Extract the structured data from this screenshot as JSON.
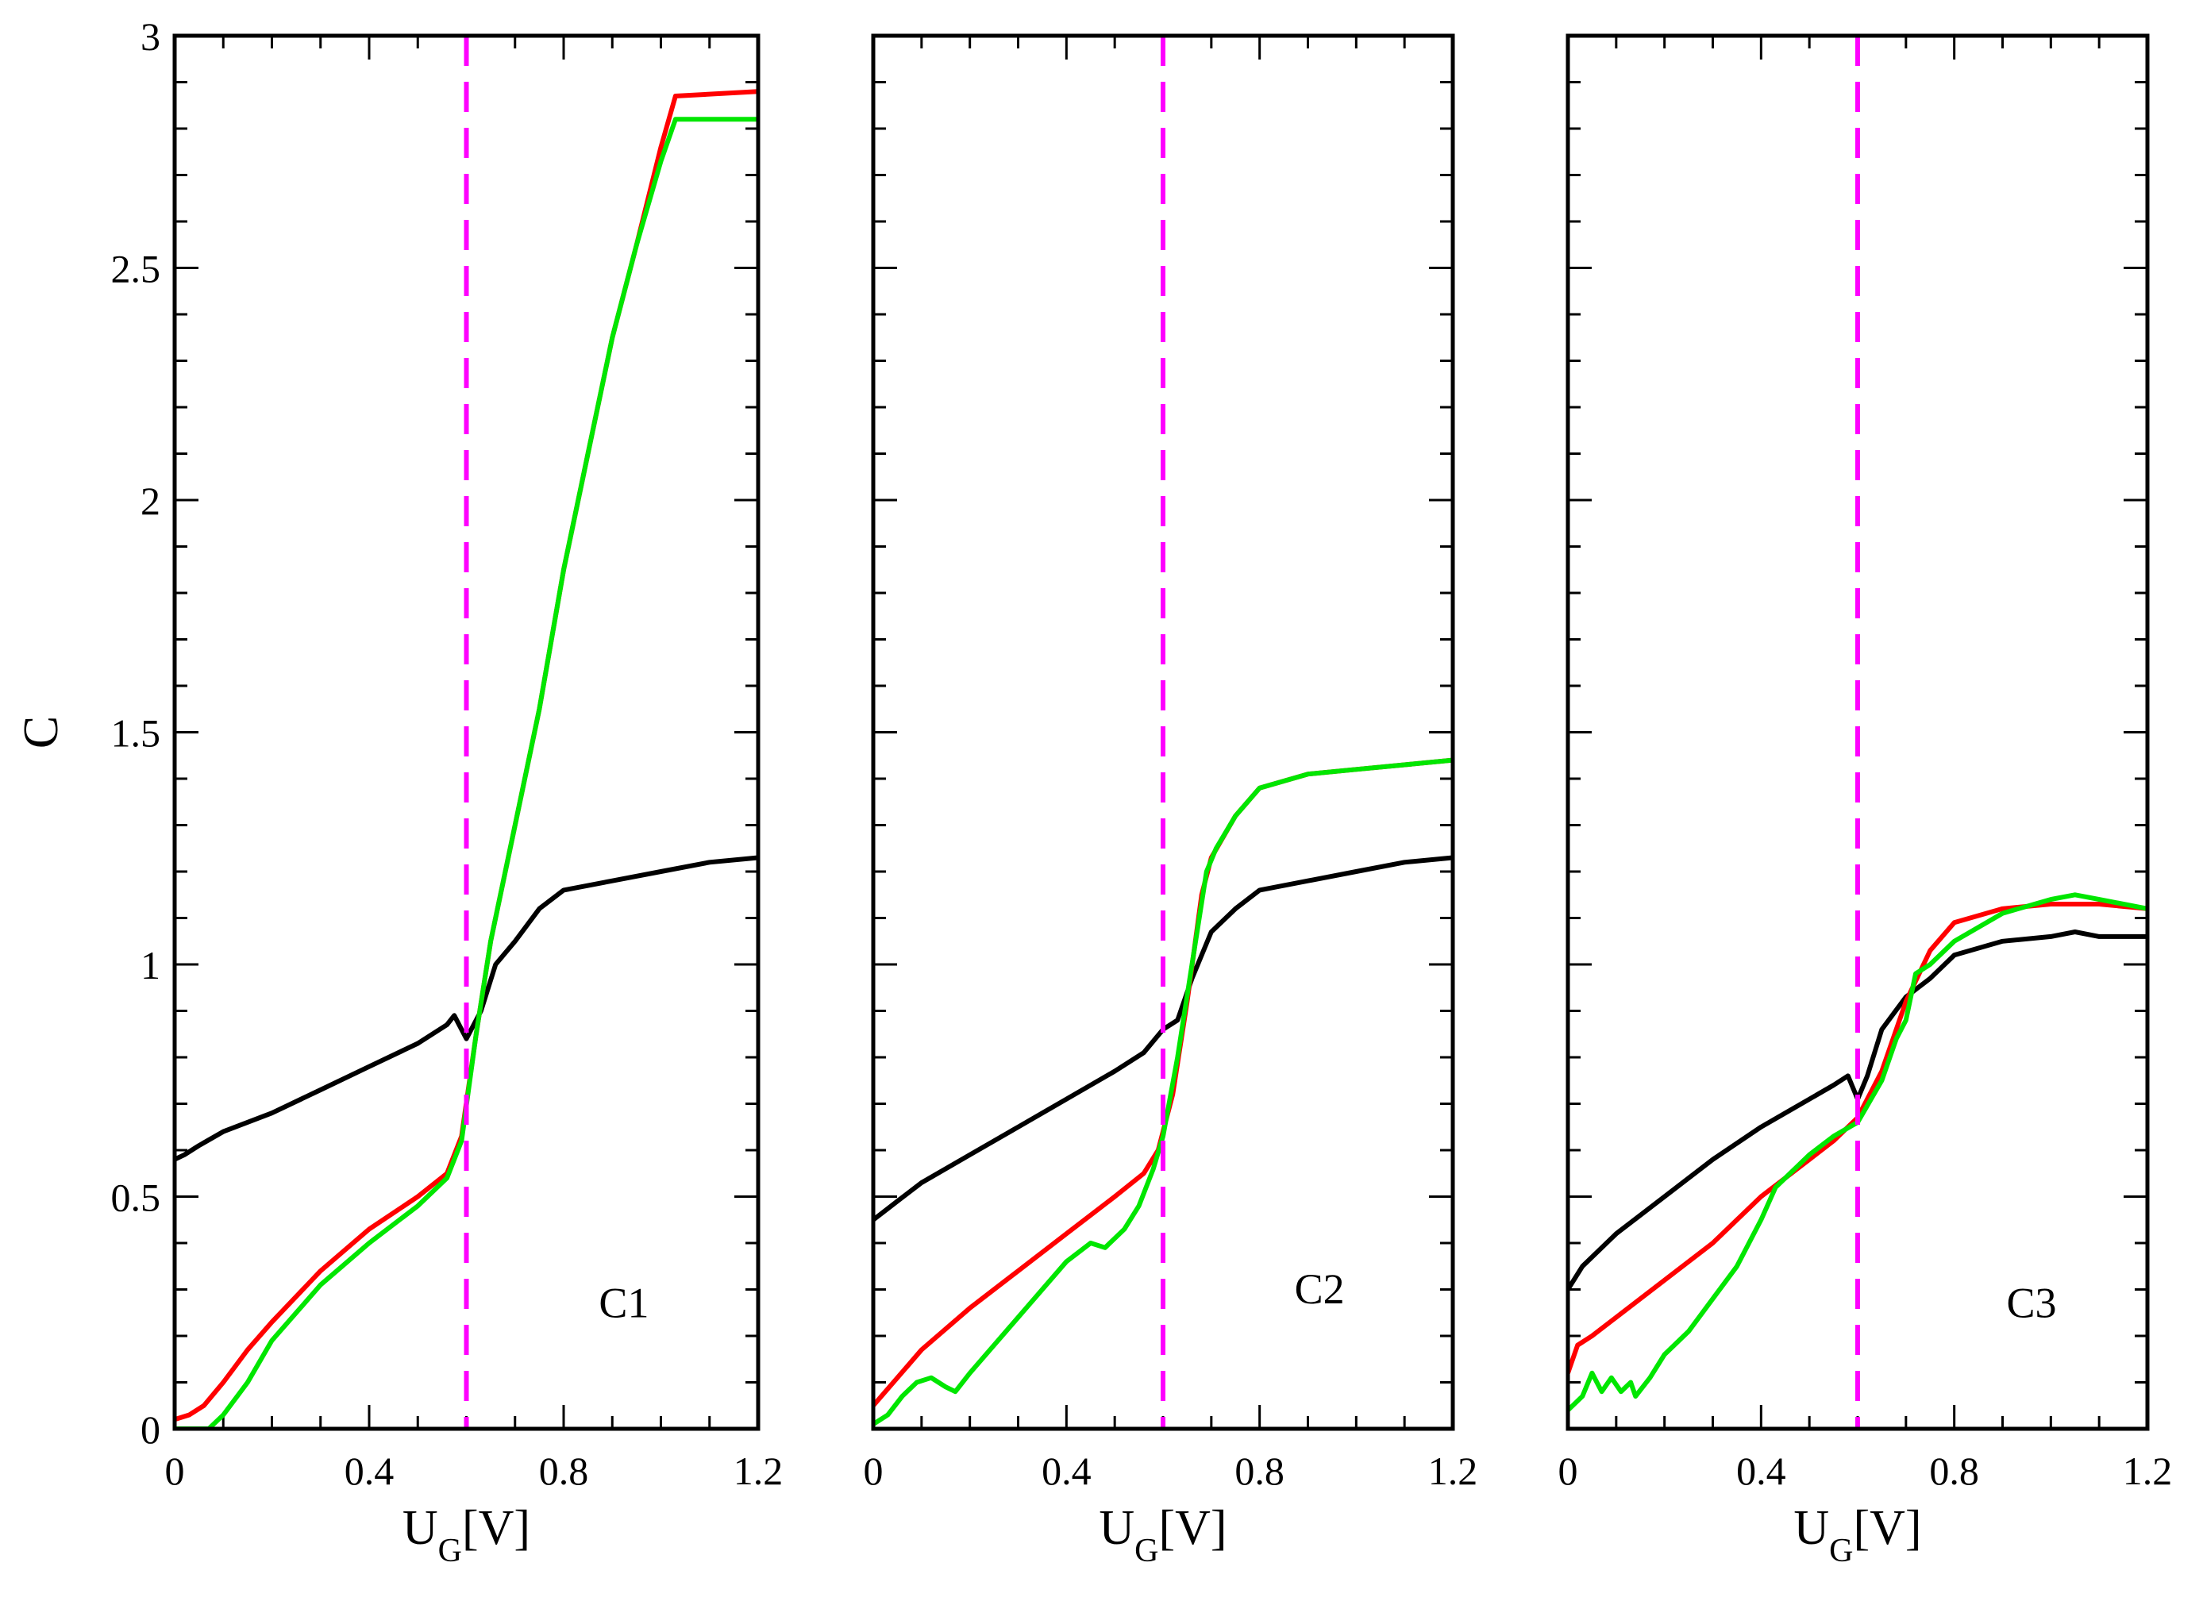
{
  "chart_data": [
    {
      "type": "line",
      "panel_label": "C1",
      "xlabel": "U",
      "xlabel_sub": "G",
      "xlabel_unit": "[V]",
      "ylabel": "C",
      "xlim": [
        0,
        1.2
      ],
      "ylim": [
        0,
        3
      ],
      "xticks": [
        "0",
        "0.4",
        "0.8",
        "1.2"
      ],
      "yticks": [
        "0",
        "0.5",
        "1",
        "1.5",
        "2",
        "2.5",
        "3"
      ],
      "vline": {
        "x": 0.6,
        "color": "#ff00ff",
        "style": "dashed"
      },
      "series": [
        {
          "name": "black",
          "color": "#000000",
          "points": [
            [
              0,
              0.58
            ],
            [
              0.02,
              0.59
            ],
            [
              0.05,
              0.61
            ],
            [
              0.1,
              0.64
            ],
            [
              0.2,
              0.68
            ],
            [
              0.3,
              0.73
            ],
            [
              0.4,
              0.78
            ],
            [
              0.5,
              0.83
            ],
            [
              0.56,
              0.87
            ],
            [
              0.575,
              0.89
            ],
            [
              0.6,
              0.84
            ],
            [
              0.63,
              0.9
            ],
            [
              0.66,
              1.0
            ],
            [
              0.7,
              1.05
            ],
            [
              0.75,
              1.12
            ],
            [
              0.8,
              1.16
            ],
            [
              0.9,
              1.18
            ],
            [
              1.0,
              1.2
            ],
            [
              1.1,
              1.22
            ],
            [
              1.2,
              1.23
            ]
          ]
        },
        {
          "name": "red",
          "color": "#ff0000",
          "points": [
            [
              0,
              0.02
            ],
            [
              0.03,
              0.03
            ],
            [
              0.06,
              0.05
            ],
            [
              0.1,
              0.1
            ],
            [
              0.15,
              0.17
            ],
            [
              0.2,
              0.23
            ],
            [
              0.3,
              0.34
            ],
            [
              0.4,
              0.43
            ],
            [
              0.5,
              0.5
            ],
            [
              0.56,
              0.55
            ],
            [
              0.59,
              0.63
            ],
            [
              0.62,
              0.85
            ],
            [
              0.65,
              1.05
            ],
            [
              0.7,
              1.3
            ],
            [
              0.75,
              1.55
            ],
            [
              0.8,
              1.85
            ],
            [
              0.85,
              2.1
            ],
            [
              0.9,
              2.35
            ],
            [
              0.95,
              2.55
            ],
            [
              1.0,
              2.76
            ],
            [
              1.03,
              2.87
            ],
            [
              1.2,
              2.88
            ]
          ]
        },
        {
          "name": "green",
          "color": "#00e600",
          "points": [
            [
              0,
              0
            ],
            [
              0.07,
              0.0
            ],
            [
              0.1,
              0.03
            ],
            [
              0.15,
              0.1
            ],
            [
              0.2,
              0.19
            ],
            [
              0.3,
              0.31
            ],
            [
              0.4,
              0.4
            ],
            [
              0.5,
              0.48
            ],
            [
              0.56,
              0.54
            ],
            [
              0.59,
              0.62
            ],
            [
              0.62,
              0.85
            ],
            [
              0.65,
              1.05
            ],
            [
              0.7,
              1.3
            ],
            [
              0.75,
              1.55
            ],
            [
              0.8,
              1.85
            ],
            [
              0.85,
              2.1
            ],
            [
              0.9,
              2.35
            ],
            [
              0.95,
              2.55
            ],
            [
              1.0,
              2.73
            ],
            [
              1.03,
              2.82
            ],
            [
              1.2,
              2.82
            ]
          ]
        }
      ]
    },
    {
      "type": "line",
      "panel_label": "C2",
      "xlabel": "U",
      "xlabel_sub": "G",
      "xlabel_unit": "[V]",
      "xlim": [
        0,
        1.2
      ],
      "ylim": [
        0,
        3
      ],
      "xticks": [
        "0",
        "0.4",
        "0.8",
        "1.2"
      ],
      "vline": {
        "x": 0.6,
        "color": "#ff00ff",
        "style": "dashed"
      },
      "series": [
        {
          "name": "black",
          "color": "#000000",
          "points": [
            [
              0,
              0.45
            ],
            [
              0.05,
              0.49
            ],
            [
              0.1,
              0.53
            ],
            [
              0.2,
              0.59
            ],
            [
              0.3,
              0.65
            ],
            [
              0.4,
              0.71
            ],
            [
              0.5,
              0.77
            ],
            [
              0.56,
              0.81
            ],
            [
              0.6,
              0.86
            ],
            [
              0.63,
              0.88
            ],
            [
              0.66,
              0.97
            ],
            [
              0.7,
              1.07
            ],
            [
              0.75,
              1.12
            ],
            [
              0.8,
              1.16
            ],
            [
              0.9,
              1.18
            ],
            [
              1.0,
              1.2
            ],
            [
              1.1,
              1.22
            ],
            [
              1.2,
              1.23
            ]
          ]
        },
        {
          "name": "red",
          "color": "#ff0000",
          "points": [
            [
              0,
              0.05
            ],
            [
              0.05,
              0.11
            ],
            [
              0.1,
              0.17
            ],
            [
              0.2,
              0.26
            ],
            [
              0.3,
              0.34
            ],
            [
              0.4,
              0.42
            ],
            [
              0.5,
              0.5
            ],
            [
              0.56,
              0.55
            ],
            [
              0.59,
              0.6
            ],
            [
              0.62,
              0.72
            ],
            [
              0.65,
              0.92
            ],
            [
              0.68,
              1.15
            ],
            [
              0.7,
              1.23
            ],
            [
              0.75,
              1.32
            ],
            [
              0.8,
              1.38
            ],
            [
              0.9,
              1.41
            ],
            [
              1.0,
              1.42
            ],
            [
              1.1,
              1.43
            ],
            [
              1.2,
              1.44
            ]
          ]
        },
        {
          "name": "green",
          "color": "#00e600",
          "points": [
            [
              0,
              0.01
            ],
            [
              0.03,
              0.03
            ],
            [
              0.06,
              0.07
            ],
            [
              0.09,
              0.1
            ],
            [
              0.12,
              0.11
            ],
            [
              0.15,
              0.09
            ],
            [
              0.17,
              0.08
            ],
            [
              0.2,
              0.12
            ],
            [
              0.25,
              0.18
            ],
            [
              0.3,
              0.24
            ],
            [
              0.35,
              0.3
            ],
            [
              0.4,
              0.36
            ],
            [
              0.45,
              0.4
            ],
            [
              0.48,
              0.39
            ],
            [
              0.52,
              0.43
            ],
            [
              0.55,
              0.48
            ],
            [
              0.58,
              0.56
            ],
            [
              0.6,
              0.63
            ],
            [
              0.63,
              0.8
            ],
            [
              0.66,
              1.0
            ],
            [
              0.69,
              1.2
            ],
            [
              0.71,
              1.25
            ],
            [
              0.75,
              1.32
            ],
            [
              0.8,
              1.38
            ],
            [
              0.9,
              1.41
            ],
            [
              1.0,
              1.42
            ],
            [
              1.1,
              1.43
            ],
            [
              1.2,
              1.44
            ]
          ]
        }
      ]
    },
    {
      "type": "line",
      "panel_label": "C3",
      "xlabel": "U",
      "xlabel_sub": "G",
      "xlabel_unit": "[V]",
      "xlim": [
        0,
        1.2
      ],
      "ylim": [
        0,
        3
      ],
      "xticks": [
        "0",
        "0.4",
        "0.8",
        "1.2"
      ],
      "vline": {
        "x": 0.6,
        "color": "#ff00ff",
        "style": "dashed"
      },
      "series": [
        {
          "name": "black",
          "color": "#000000",
          "points": [
            [
              0,
              0.3
            ],
            [
              0.03,
              0.35
            ],
            [
              0.1,
              0.42
            ],
            [
              0.2,
              0.5
            ],
            [
              0.3,
              0.58
            ],
            [
              0.4,
              0.65
            ],
            [
              0.5,
              0.71
            ],
            [
              0.55,
              0.74
            ],
            [
              0.58,
              0.76
            ],
            [
              0.6,
              0.71
            ],
            [
              0.62,
              0.76
            ],
            [
              0.65,
              0.86
            ],
            [
              0.7,
              0.93
            ],
            [
              0.75,
              0.97
            ],
            [
              0.8,
              1.02
            ],
            [
              0.9,
              1.05
            ],
            [
              1.0,
              1.06
            ],
            [
              1.05,
              1.07
            ],
            [
              1.1,
              1.06
            ],
            [
              1.2,
              1.06
            ]
          ]
        },
        {
          "name": "red",
          "color": "#ff0000",
          "points": [
            [
              0,
              0.12
            ],
            [
              0.02,
              0.18
            ],
            [
              0.05,
              0.2
            ],
            [
              0.1,
              0.24
            ],
            [
              0.2,
              0.32
            ],
            [
              0.3,
              0.4
            ],
            [
              0.4,
              0.5
            ],
            [
              0.5,
              0.58
            ],
            [
              0.55,
              0.62
            ],
            [
              0.6,
              0.67
            ],
            [
              0.65,
              0.77
            ],
            [
              0.7,
              0.92
            ],
            [
              0.75,
              1.03
            ],
            [
              0.8,
              1.09
            ],
            [
              0.9,
              1.12
            ],
            [
              1.0,
              1.13
            ],
            [
              1.1,
              1.13
            ],
            [
              1.2,
              1.12
            ]
          ]
        },
        {
          "name": "green",
          "color": "#00e600",
          "points": [
            [
              0,
              0.04
            ],
            [
              0.03,
              0.07
            ],
            [
              0.05,
              0.12
            ],
            [
              0.07,
              0.08
            ],
            [
              0.09,
              0.11
            ],
            [
              0.11,
              0.08
            ],
            [
              0.13,
              0.1
            ],
            [
              0.14,
              0.07
            ],
            [
              0.17,
              0.11
            ],
            [
              0.2,
              0.16
            ],
            [
              0.25,
              0.21
            ],
            [
              0.3,
              0.28
            ],
            [
              0.35,
              0.35
            ],
            [
              0.4,
              0.45
            ],
            [
              0.43,
              0.52
            ],
            [
              0.5,
              0.59
            ],
            [
              0.55,
              0.63
            ],
            [
              0.6,
              0.66
            ],
            [
              0.65,
              0.75
            ],
            [
              0.68,
              0.84
            ],
            [
              0.7,
              0.88
            ],
            [
              0.72,
              0.98
            ],
            [
              0.75,
              1.0
            ],
            [
              0.8,
              1.05
            ],
            [
              0.9,
              1.11
            ],
            [
              1.0,
              1.14
            ],
            [
              1.05,
              1.15
            ],
            [
              1.1,
              1.14
            ],
            [
              1.2,
              1.12
            ]
          ]
        }
      ]
    }
  ]
}
